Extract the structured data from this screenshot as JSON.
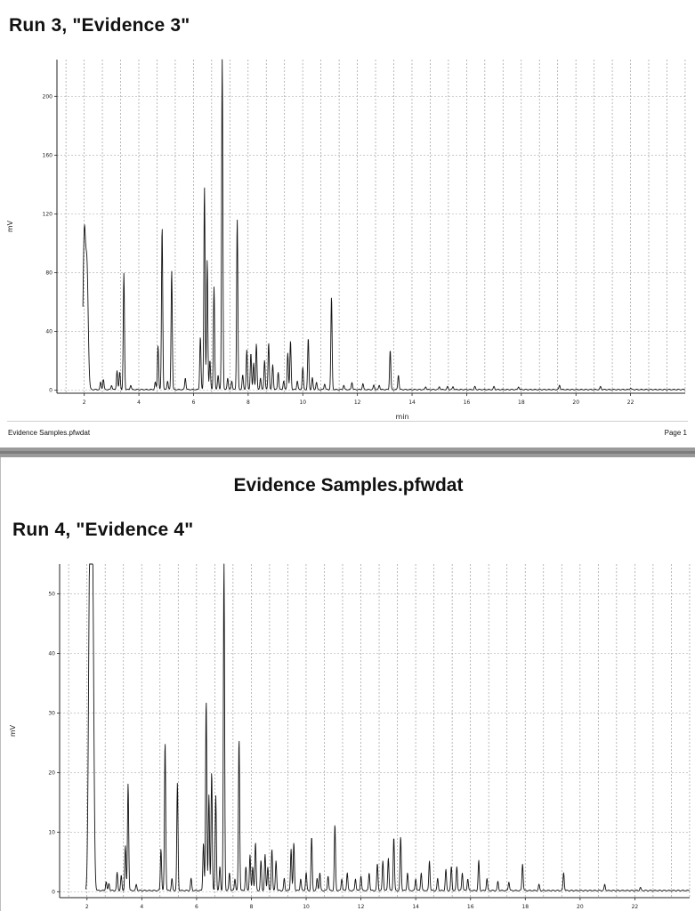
{
  "pages": [
    {
      "run_title": "Run 3, \"Evidence 3\"",
      "footer_left": "Evidence Samples.pfwdat",
      "footer_right": "Page 1"
    },
    {
      "doc_title": "Evidence Samples.pfwdat",
      "run_title": "Run 4, \"Evidence 4\""
    }
  ],
  "chart_data": [
    {
      "type": "line",
      "title": "Run 3, \"Evidence 3\"",
      "xlabel": "min",
      "ylabel": "mV",
      "xlim": [
        1.0,
        24.0
      ],
      "ylim": [
        -2,
        225
      ],
      "x_ticks": [
        2,
        4,
        6,
        8,
        10,
        12,
        14,
        16,
        18,
        20,
        22
      ],
      "x_tick_labels": [
        "2",
        "4",
        "6",
        "8",
        "10",
        "12",
        "14",
        "16",
        "18",
        "20",
        "22"
      ],
      "y_ticks": [
        0,
        40,
        80,
        120,
        160,
        200
      ],
      "y_tick_labels": [
        "0",
        "40",
        "80",
        "120",
        "160",
        "200"
      ],
      "grid": true,
      "baseline": 0.5,
      "series": [
        {
          "peaks": [
            [
              2.0,
              104
            ],
            [
              2.1,
              80
            ],
            [
              2.6,
              5
            ],
            [
              2.7,
              7
            ],
            [
              3.0,
              3
            ],
            [
              3.2,
              13
            ],
            [
              3.3,
              12
            ],
            [
              3.45,
              79
            ],
            [
              3.7,
              3
            ],
            [
              4.6,
              5
            ],
            [
              4.7,
              30
            ],
            [
              4.85,
              111
            ],
            [
              5.05,
              6
            ],
            [
              5.2,
              81
            ],
            [
              5.7,
              8
            ],
            [
              6.25,
              36
            ],
            [
              6.4,
              138
            ],
            [
              6.5,
              88
            ],
            [
              6.6,
              20
            ],
            [
              6.75,
              70
            ],
            [
              6.9,
              10
            ],
            [
              7.05,
              225
            ],
            [
              7.25,
              8
            ],
            [
              7.4,
              6
            ],
            [
              7.6,
              116
            ],
            [
              7.8,
              10
            ],
            [
              7.95,
              27
            ],
            [
              8.1,
              25
            ],
            [
              8.2,
              18
            ],
            [
              8.3,
              31
            ],
            [
              8.45,
              8
            ],
            [
              8.6,
              20
            ],
            [
              8.75,
              32
            ],
            [
              8.9,
              17
            ],
            [
              9.1,
              12
            ],
            [
              9.3,
              6
            ],
            [
              9.45,
              25
            ],
            [
              9.55,
              33
            ],
            [
              9.8,
              6
            ],
            [
              10.0,
              15
            ],
            [
              10.2,
              35
            ],
            [
              10.35,
              8
            ],
            [
              10.5,
              5
            ],
            [
              10.8,
              4
            ],
            [
              11.05,
              63
            ],
            [
              11.5,
              3
            ],
            [
              11.8,
              5
            ],
            [
              12.2,
              4
            ],
            [
              12.6,
              3
            ],
            [
              12.8,
              3
            ],
            [
              13.2,
              27
            ],
            [
              13.5,
              10
            ],
            [
              14.5,
              2
            ],
            [
              15.0,
              2
            ],
            [
              15.3,
              2
            ],
            [
              15.5,
              2
            ],
            [
              16.3,
              2
            ],
            [
              17.0,
              2
            ],
            [
              17.9,
              2
            ],
            [
              19.4,
              3
            ],
            [
              20.9,
              2
            ],
            [
              22.0,
              1
            ]
          ]
        }
      ]
    },
    {
      "type": "line",
      "title": "Run 4, \"Evidence 4\"",
      "xlabel": "",
      "ylabel": "mV",
      "xlim": [
        1.0,
        24.0
      ],
      "ylim": [
        -1,
        55
      ],
      "x_ticks": [
        2,
        4,
        6,
        8,
        10,
        12,
        14,
        16,
        18,
        20,
        22
      ],
      "x_tick_labels": [
        "2",
        "4",
        "6",
        "8",
        "10",
        "12",
        "14",
        "16",
        "18",
        "20",
        "22"
      ],
      "y_ticks": [
        0,
        10,
        20,
        30,
        40,
        50
      ],
      "y_tick_labels": [
        "0",
        "10",
        "20",
        "30",
        "40",
        "50"
      ],
      "grid": true,
      "baseline": 0.2,
      "series": [
        {
          "peaks": [
            [
              2.1,
              55
            ],
            [
              2.2,
              55
            ],
            [
              2.7,
              1.5
            ],
            [
              2.8,
              1.2
            ],
            [
              3.1,
              3
            ],
            [
              3.25,
              2.5
            ],
            [
              3.4,
              7.5
            ],
            [
              3.5,
              18
            ],
            [
              3.8,
              1
            ],
            [
              4.7,
              7
            ],
            [
              4.85,
              25
            ],
            [
              5.1,
              2
            ],
            [
              5.3,
              18
            ],
            [
              5.8,
              2
            ],
            [
              6.25,
              8
            ],
            [
              6.35,
              32
            ],
            [
              6.45,
              16
            ],
            [
              6.55,
              20
            ],
            [
              6.7,
              16
            ],
            [
              6.85,
              4
            ],
            [
              7.0,
              55
            ],
            [
              7.2,
              3
            ],
            [
              7.4,
              2
            ],
            [
              7.55,
              25.5
            ],
            [
              7.8,
              4
            ],
            [
              7.95,
              6
            ],
            [
              8.05,
              4
            ],
            [
              8.15,
              8
            ],
            [
              8.35,
              5
            ],
            [
              8.5,
              6
            ],
            [
              8.6,
              4
            ],
            [
              8.75,
              7
            ],
            [
              8.9,
              5
            ],
            [
              9.2,
              2
            ],
            [
              9.45,
              7
            ],
            [
              9.55,
              8
            ],
            [
              9.8,
              2
            ],
            [
              10.0,
              3
            ],
            [
              10.2,
              9
            ],
            [
              10.4,
              2
            ],
            [
              10.5,
              3
            ],
            [
              10.8,
              2.5
            ],
            [
              11.05,
              11
            ],
            [
              11.3,
              2
            ],
            [
              11.5,
              3
            ],
            [
              11.8,
              2
            ],
            [
              12.0,
              2.5
            ],
            [
              12.3,
              3
            ],
            [
              12.6,
              4.5
            ],
            [
              12.8,
              5
            ],
            [
              13.0,
              5.5
            ],
            [
              13.2,
              9
            ],
            [
              13.45,
              9
            ],
            [
              13.7,
              3
            ],
            [
              14.0,
              2
            ],
            [
              14.2,
              3
            ],
            [
              14.5,
              5
            ],
            [
              14.8,
              2
            ],
            [
              15.1,
              3.5
            ],
            [
              15.3,
              4
            ],
            [
              15.5,
              4
            ],
            [
              15.7,
              3
            ],
            [
              15.9,
              2
            ],
            [
              16.3,
              5
            ],
            [
              16.6,
              2
            ],
            [
              17.0,
              1.5
            ],
            [
              17.4,
              1.5
            ],
            [
              17.9,
              4.5
            ],
            [
              18.5,
              1
            ],
            [
              19.4,
              3
            ],
            [
              20.9,
              1
            ],
            [
              22.2,
              0.5
            ]
          ]
        }
      ]
    }
  ]
}
